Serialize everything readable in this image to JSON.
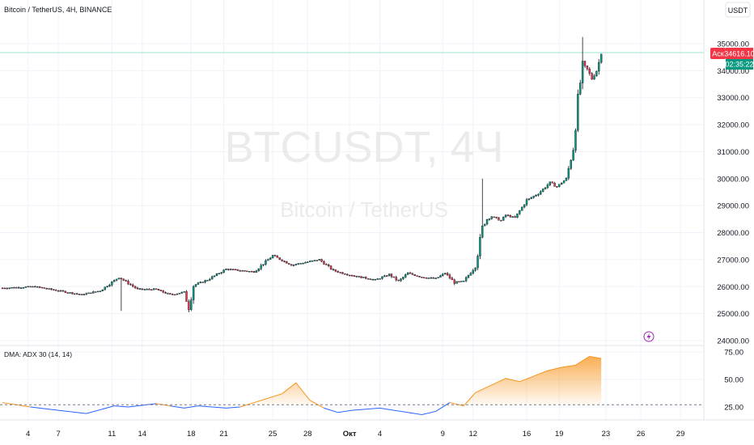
{
  "header": {
    "symbol_line": "Bitcoin / TetherUS, 4H, BINANCE",
    "currency_button": "USDT"
  },
  "watermark": {
    "ticker": "BTCUSDT, 4Ч",
    "name": "Bitcoin / TetherUS"
  },
  "price_tags": {
    "label": "Аск",
    "price": "34616.10",
    "countdown": "02:35:22"
  },
  "indicator": {
    "title": "DMA: ADX 30 (14, 14)"
  },
  "colors": {
    "up": "#089981",
    "down": "#f23645",
    "wick": "#131722",
    "adx_high": "#f7931a",
    "adx_low": "#2962ff",
    "ask": "#f23645",
    "timer": "#089981",
    "grid": "#f0f3fa"
  },
  "chart_data": [
    {
      "type": "candlestick",
      "x_ticks": [
        "4",
        "7",
        "11",
        "14",
        "18",
        "21",
        "25",
        "28",
        "Окт",
        "4",
        "9",
        "12",
        "16",
        "19",
        "23",
        "26",
        "29"
      ],
      "y_ticks": [
        "35000.00",
        "34000.00",
        "33000.00",
        "32000.00",
        "31000.00",
        "30000.00",
        "29000.00",
        "28000.00",
        "27000.00",
        "26000.00",
        "25000.00",
        "24000.00"
      ],
      "ylim": [
        23850,
        35450
      ],
      "close_path": [
        [
          0,
          25950
        ],
        [
          14,
          26000
        ],
        [
          24,
          25850
        ],
        [
          34,
          25700
        ],
        [
          42,
          25850
        ],
        [
          50,
          26350
        ],
        [
          58,
          25900
        ],
        [
          66,
          25900
        ],
        [
          72,
          25700
        ],
        [
          78,
          25800
        ],
        [
          80,
          25200
        ],
        [
          82,
          26050
        ],
        [
          88,
          26250
        ],
        [
          96,
          26650
        ],
        [
          102,
          26600
        ],
        [
          108,
          26550
        ],
        [
          116,
          27150
        ],
        [
          124,
          26800
        ],
        [
          130,
          26900
        ],
        [
          136,
          27000
        ],
        [
          142,
          26600
        ],
        [
          148,
          26450
        ],
        [
          154,
          26350
        ],
        [
          160,
          26250
        ],
        [
          166,
          26450
        ],
        [
          170,
          26200
        ],
        [
          174,
          26500
        ],
        [
          180,
          26350
        ],
        [
          186,
          26300
        ],
        [
          190,
          26500
        ],
        [
          194,
          26150
        ],
        [
          198,
          26200
        ],
        [
          203,
          26750
        ],
        [
          206,
          28200
        ],
        [
          208,
          28500
        ],
        [
          210,
          28600
        ],
        [
          214,
          28450
        ],
        [
          216,
          28650
        ],
        [
          220,
          28550
        ],
        [
          225,
          29200
        ],
        [
          230,
          29450
        ],
        [
          235,
          29850
        ],
        [
          238,
          29700
        ],
        [
          242,
          30000
        ],
        [
          245,
          31100
        ],
        [
          247,
          32900
        ],
        [
          249,
          34200
        ],
        [
          251,
          34050
        ],
        [
          253,
          33700
        ],
        [
          255,
          34000
        ],
        [
          257,
          34616
        ]
      ],
      "high_peak": [
        249,
        35250
      ],
      "last_price": 34616.1
    },
    {
      "type": "line",
      "name": "ADX",
      "ylim": [
        18,
        76
      ],
      "y_ticks": [
        "75.00",
        "50.00",
        "25.00"
      ],
      "reference_level": 27,
      "x": [
        0,
        12,
        24,
        36,
        48,
        54,
        66,
        72,
        78,
        84,
        90,
        96,
        102,
        108,
        114,
        120,
        126,
        132,
        138,
        144,
        150,
        156,
        162,
        168,
        174,
        180,
        186,
        192,
        198,
        203,
        210,
        216,
        222,
        228,
        234,
        240,
        246,
        252,
        257
      ],
      "values": [
        29,
        25,
        22,
        19,
        26,
        25,
        28,
        26,
        24,
        26,
        25,
        24,
        25,
        29,
        33,
        37,
        47,
        31,
        24,
        20,
        22,
        23,
        24,
        22,
        20,
        18,
        21,
        29,
        26,
        38,
        45,
        51,
        48,
        53,
        58,
        61,
        63,
        71,
        69
      ]
    }
  ]
}
